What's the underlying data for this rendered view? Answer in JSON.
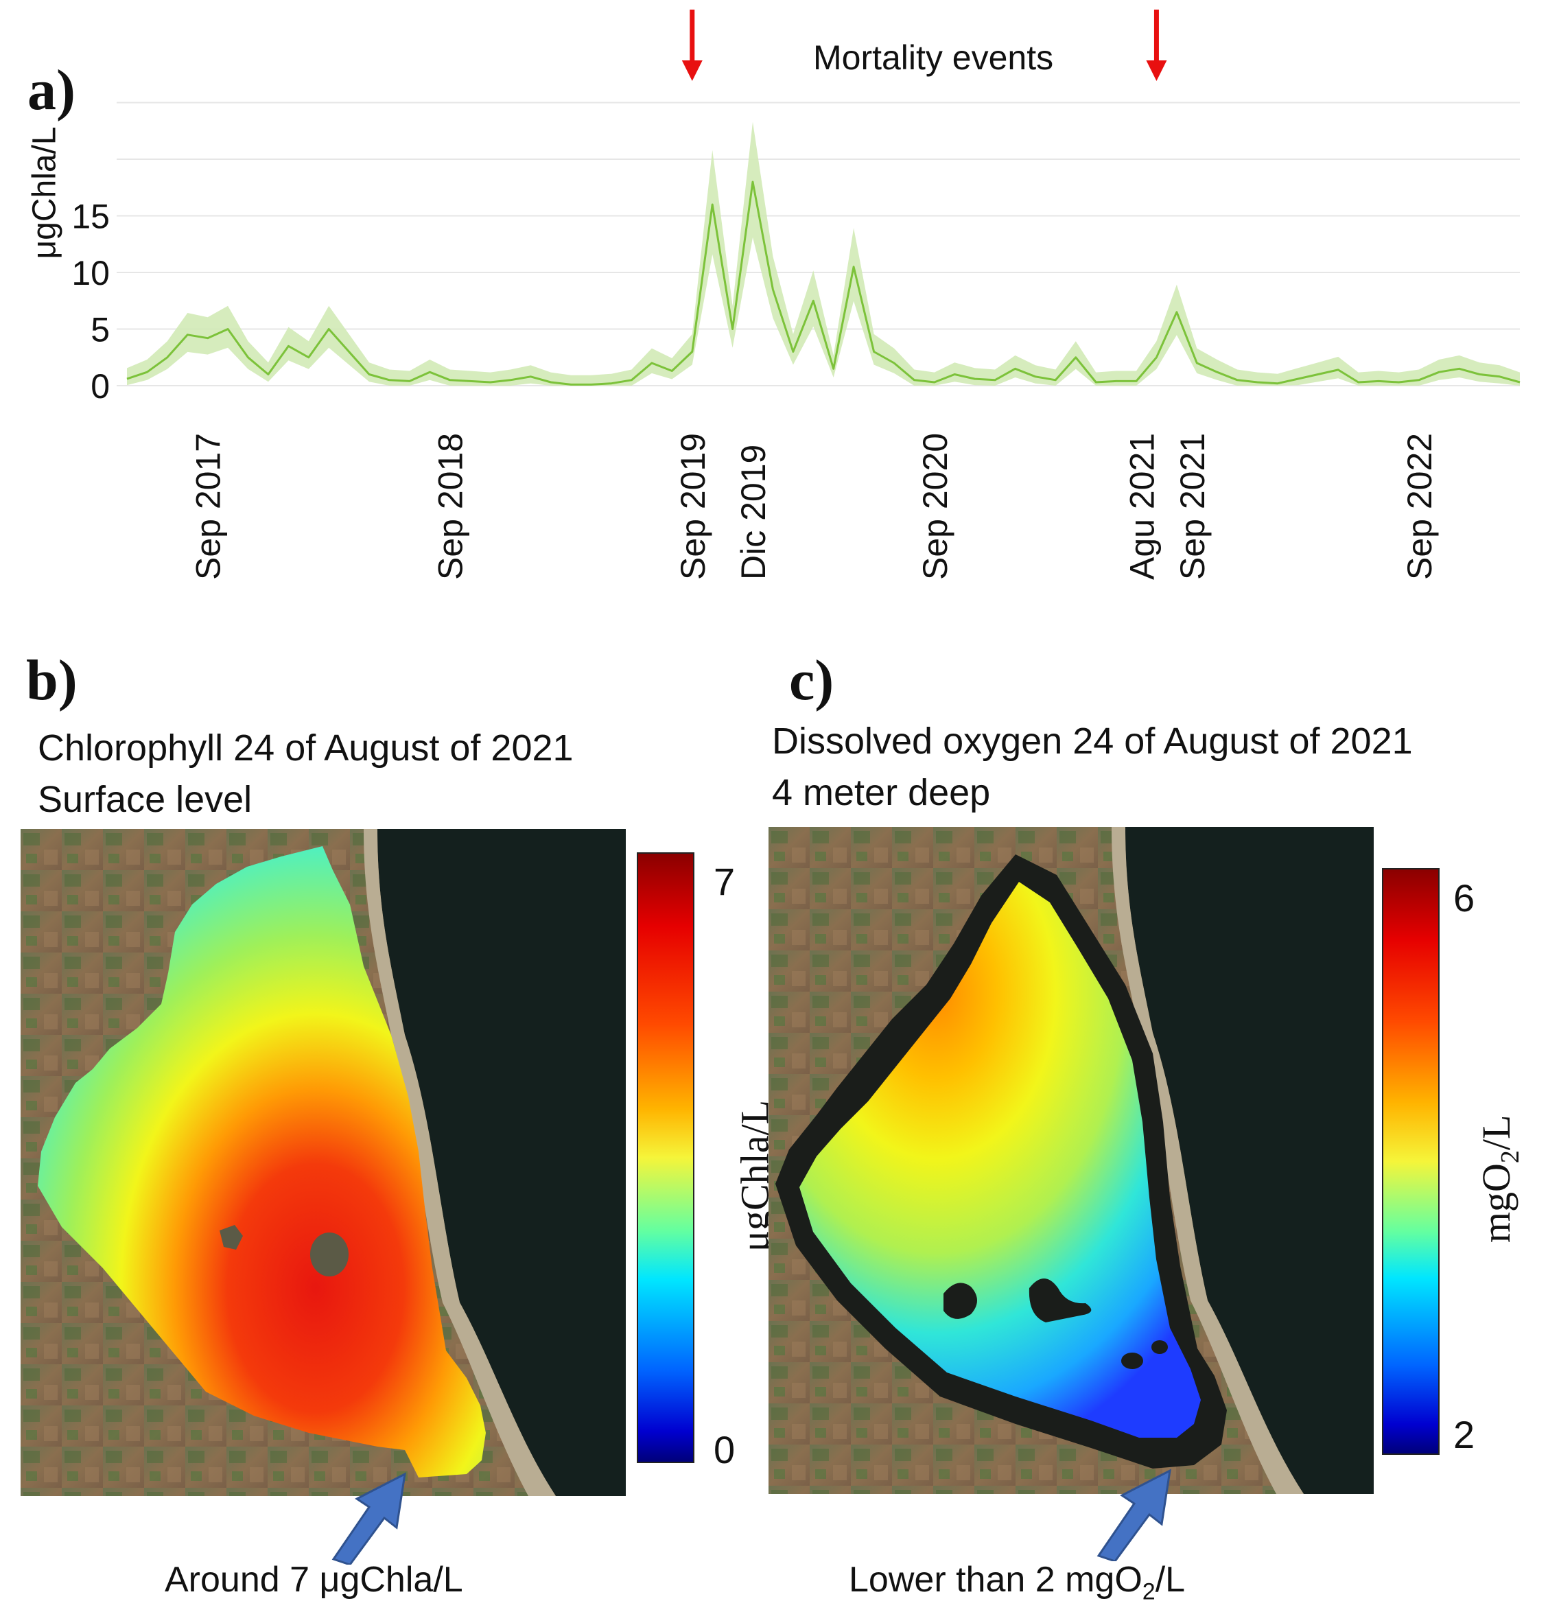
{
  "panel_a": {
    "letter": "a)",
    "annotation": "Mortality events",
    "ylabel": "μgChla/L"
  },
  "panel_b": {
    "letter": "b)",
    "title_line1": "Chlorophyll 24 of August of 2021",
    "title_line2": "Surface level",
    "colorbar_max": "7",
    "colorbar_min": "0",
    "colorbar_label": "μgChla/L",
    "note": "Around 7 μgChla/L"
  },
  "panel_c": {
    "letter": "c)",
    "title_line1": "Dissolved oxygen 24 of August of 2021",
    "title_line2": "4 meter deep",
    "colorbar_max": "6",
    "colorbar_min": "2",
    "colorbar_label_prefix": "mgO",
    "colorbar_label_sub": "2",
    "colorbar_label_suffix": "/L",
    "note_prefix": "Lower than 2 mgO",
    "note_sub": "2",
    "note_suffix": "/L"
  },
  "colors": {
    "series_line": "#7cc23a",
    "series_band": "#cfe9b2",
    "arrow_red": "#e81010",
    "arrow_blue": "#4472c4"
  },
  "chart_data": {
    "type": "line",
    "title": "",
    "xlabel": "",
    "ylabel": "μgChla/L",
    "yticks": [
      "0",
      "5",
      "10",
      "15"
    ],
    "ylim": [
      0,
      25
    ],
    "grid": "horizontal",
    "xticks": [
      "Sep 2017",
      "Sep 2018",
      "Sep 2019",
      "Dic 2019",
      "Sep 2020",
      "Agu 2021",
      "Sep 2021",
      "Sep 2022"
    ],
    "x_range": [
      "2017-05",
      "2023-02"
    ],
    "series": [
      {
        "x": [
          "2017-05",
          "2017-06",
          "2017-07",
          "2017-08",
          "2017-09",
          "2017-10",
          "2017-11",
          "2017-12",
          "2018-01",
          "2018-02",
          "2018-03",
          "2018-04",
          "2018-05",
          "2018-06",
          "2018-07",
          "2018-08",
          "2018-09",
          "2018-10",
          "2018-11",
          "2018-12",
          "2019-01",
          "2019-02",
          "2019-03",
          "2019-04",
          "2019-05",
          "2019-06",
          "2019-07",
          "2019-08",
          "2019-09",
          "2019-10",
          "2019-11",
          "2019-12",
          "2020-01",
          "2020-02",
          "2020-03",
          "2020-04",
          "2020-05",
          "2020-06",
          "2020-07",
          "2020-08",
          "2020-09",
          "2020-10",
          "2020-11",
          "2020-12",
          "2021-01",
          "2021-02",
          "2021-03",
          "2021-04",
          "2021-05",
          "2021-06",
          "2021-07",
          "2021-08",
          "2021-09",
          "2021-10",
          "2021-11",
          "2021-12",
          "2022-01",
          "2022-02",
          "2022-03",
          "2022-04",
          "2022-05",
          "2022-06",
          "2022-07",
          "2022-08",
          "2022-09",
          "2022-10",
          "2022-11",
          "2022-12",
          "2023-01",
          "2023-02"
        ],
        "values": [
          0.6,
          1.2,
          2.5,
          4.5,
          4.2,
          5.0,
          2.5,
          1.0,
          3.5,
          2.5,
          5.0,
          3.0,
          1.0,
          0.5,
          0.4,
          1.2,
          0.5,
          0.4,
          0.3,
          0.5,
          0.8,
          0.3,
          0.1,
          0.1,
          0.2,
          0.5,
          2.0,
          1.3,
          3.0,
          16.0,
          5.0,
          18.0,
          8.5,
          3.0,
          7.5,
          1.5,
          10.5,
          3.0,
          2.0,
          0.5,
          0.3,
          1.0,
          0.6,
          0.5,
          1.5,
          0.8,
          0.5,
          2.5,
          0.3,
          0.4,
          0.4,
          2.5,
          6.5,
          2.0,
          1.2,
          0.5,
          0.3,
          0.2,
          0.6,
          1.0,
          1.4,
          0.3,
          0.4,
          0.3,
          0.5,
          1.2,
          1.5,
          1.0,
          0.8,
          0.3
        ]
      }
    ],
    "annotations": [
      "Mortality events"
    ]
  }
}
